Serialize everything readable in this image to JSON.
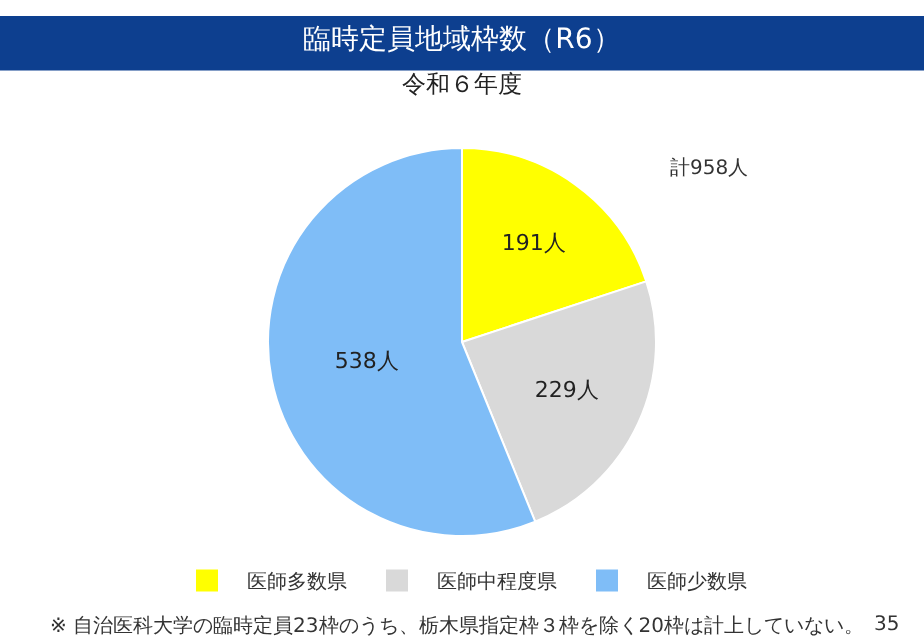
{
  "chart_data": {
    "type": "pie",
    "title": "臨時定員地域枠数（R6）",
    "subtitle": "令和６年度",
    "categories": [
      "医師多数県",
      "医師中程度県",
      "医師少数県"
    ],
    "values": [
      191,
      229,
      538
    ],
    "colors": [
      "#ffff00",
      "#d9d9d9",
      "#7fbdf7"
    ],
    "value_labels": [
      "191人",
      "229人",
      "538人"
    ],
    "legend": "bottom",
    "annotations": [
      "計958人",
      "※ 自治医科大学の臨時定員23枠のうち、栃木県指定枠３枠を除く20枠は計上していない。",
      "35"
    ]
  }
}
